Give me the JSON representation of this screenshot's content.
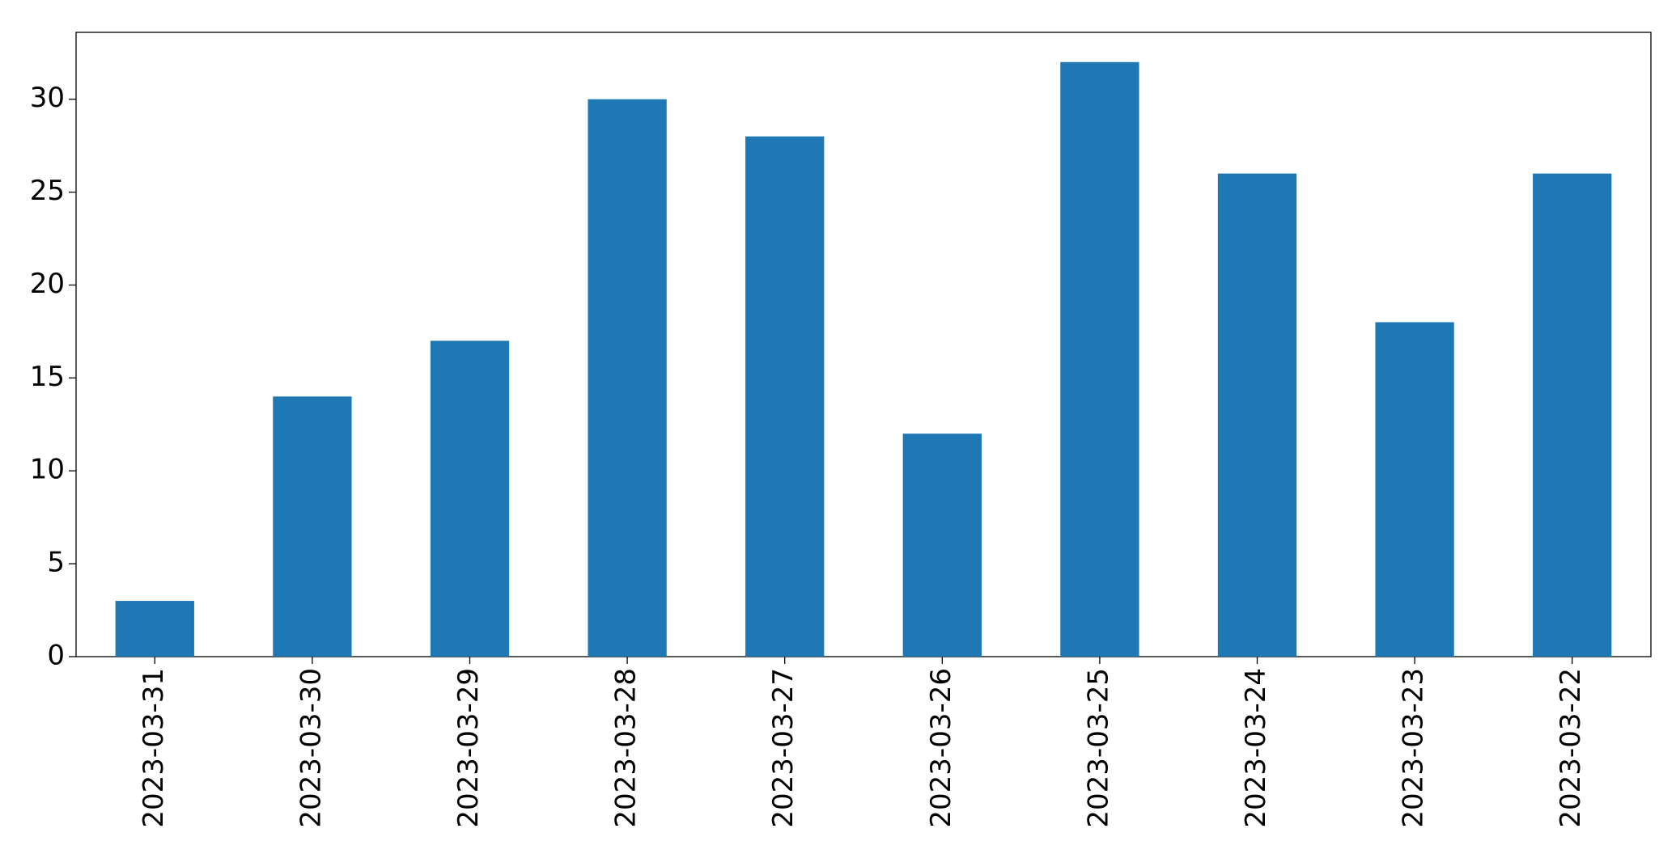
{
  "chart_data": {
    "type": "bar",
    "categories": [
      "2023-03-31",
      "2023-03-30",
      "2023-03-29",
      "2023-03-28",
      "2023-03-27",
      "2023-03-26",
      "2023-03-25",
      "2023-03-24",
      "2023-03-23",
      "2023-03-22"
    ],
    "values": [
      3,
      14,
      17,
      30,
      28,
      12,
      32,
      26,
      18,
      26
    ],
    "color": "#1f77b4",
    "ylim": [
      0,
      33.6
    ],
    "yticks": [
      0,
      5,
      10,
      15,
      20,
      25,
      30
    ],
    "grid": false
  }
}
